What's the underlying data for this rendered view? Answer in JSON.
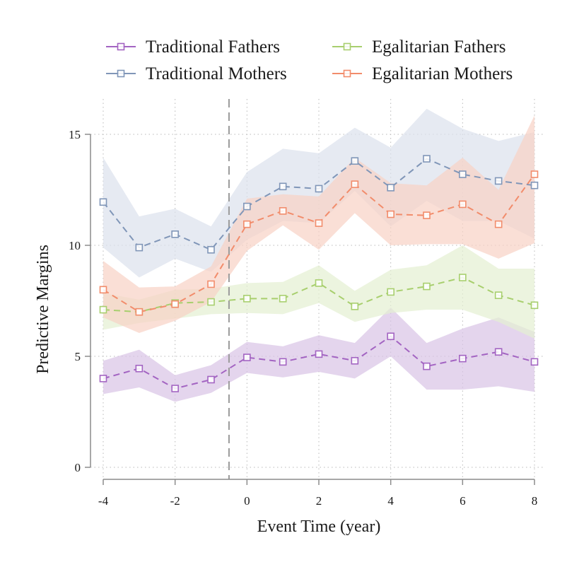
{
  "chart_data": {
    "type": "line",
    "xlabel": "Event Time (year)",
    "ylabel": "Predictive Margins",
    "xlim": [
      -4,
      8
    ],
    "ylim": [
      0,
      15
    ],
    "x_ticks": [
      -4,
      -2,
      0,
      2,
      4,
      6,
      8
    ],
    "y_ticks": [
      0,
      5,
      10,
      15
    ],
    "x_tick_labels": [
      "-4",
      "-2",
      "0",
      "2",
      "4",
      "6",
      "8"
    ],
    "y_tick_labels": [
      "0",
      "5",
      "10",
      "15"
    ],
    "grid": true,
    "reference_line_x": -0.5,
    "legend_position": "top",
    "x": [
      -4,
      -3,
      -2,
      -1,
      0,
      1,
      2,
      3,
      4,
      5,
      6,
      7,
      8
    ],
    "series": [
      {
        "name": "Traditional Fathers",
        "color": "#a364c2",
        "values": [
          4.0,
          4.45,
          3.55,
          3.95,
          4.95,
          4.75,
          5.1,
          4.8,
          5.9,
          4.55,
          4.9,
          5.2,
          4.75
        ],
        "ci_lower": [
          3.3,
          3.6,
          2.95,
          3.35,
          4.25,
          4.05,
          4.3,
          4.0,
          5.0,
          3.5,
          3.5,
          3.65,
          3.4
        ],
        "ci_upper": [
          4.8,
          5.3,
          4.15,
          4.6,
          5.65,
          5.45,
          5.95,
          5.6,
          7.2,
          5.6,
          6.25,
          6.75,
          6.1
        ],
        "band_color": "#d9c3e6"
      },
      {
        "name": "Traditional Mothers",
        "color": "#8096b8",
        "values": [
          11.95,
          9.9,
          10.5,
          9.8,
          11.75,
          12.65,
          12.55,
          13.8,
          12.6,
          13.9,
          13.2,
          12.9,
          12.7
        ],
        "ci_lower": [
          9.9,
          8.55,
          9.4,
          8.8,
          10.25,
          11.1,
          11.0,
          12.45,
          10.85,
          12.0,
          11.1,
          11.1,
          10.3
        ],
        "ci_upper": [
          13.95,
          11.3,
          11.65,
          10.85,
          13.3,
          14.35,
          14.15,
          15.3,
          14.4,
          16.15,
          15.25,
          14.7,
          15.1
        ],
        "band_color": "#dbe1ec"
      },
      {
        "name": "Egalitarian Fathers",
        "color": "#a8cf6e",
        "values": [
          7.1,
          7.0,
          7.4,
          7.45,
          7.6,
          7.6,
          8.3,
          7.25,
          7.9,
          8.15,
          8.55,
          7.75,
          7.3
        ],
        "ci_lower": [
          6.2,
          6.5,
          6.7,
          6.9,
          6.95,
          6.9,
          7.4,
          6.55,
          6.95,
          7.1,
          7.1,
          6.55,
          5.8
        ],
        "ci_upper": [
          7.85,
          7.55,
          8.0,
          8.05,
          8.3,
          8.35,
          9.1,
          7.95,
          8.9,
          9.1,
          10.0,
          8.95,
          8.95
        ],
        "band_color": "#e4f0d2"
      },
      {
        "name": "Egalitarian Mothers",
        "color": "#f28c6b",
        "values": [
          8.0,
          7.0,
          7.35,
          8.25,
          10.95,
          11.55,
          11.0,
          12.75,
          11.4,
          11.35,
          11.85,
          10.95,
          13.2
        ],
        "ci_lower": [
          6.75,
          6.05,
          6.6,
          7.45,
          9.75,
          10.9,
          9.8,
          11.45,
          10.0,
          10.05,
          10.05,
          9.4,
          10.1
        ],
        "ci_upper": [
          9.3,
          8.1,
          8.15,
          9.05,
          12.1,
          12.3,
          12.2,
          13.95,
          12.8,
          12.7,
          13.95,
          12.5,
          15.85
        ],
        "band_color": "#f8d2c5"
      }
    ]
  }
}
